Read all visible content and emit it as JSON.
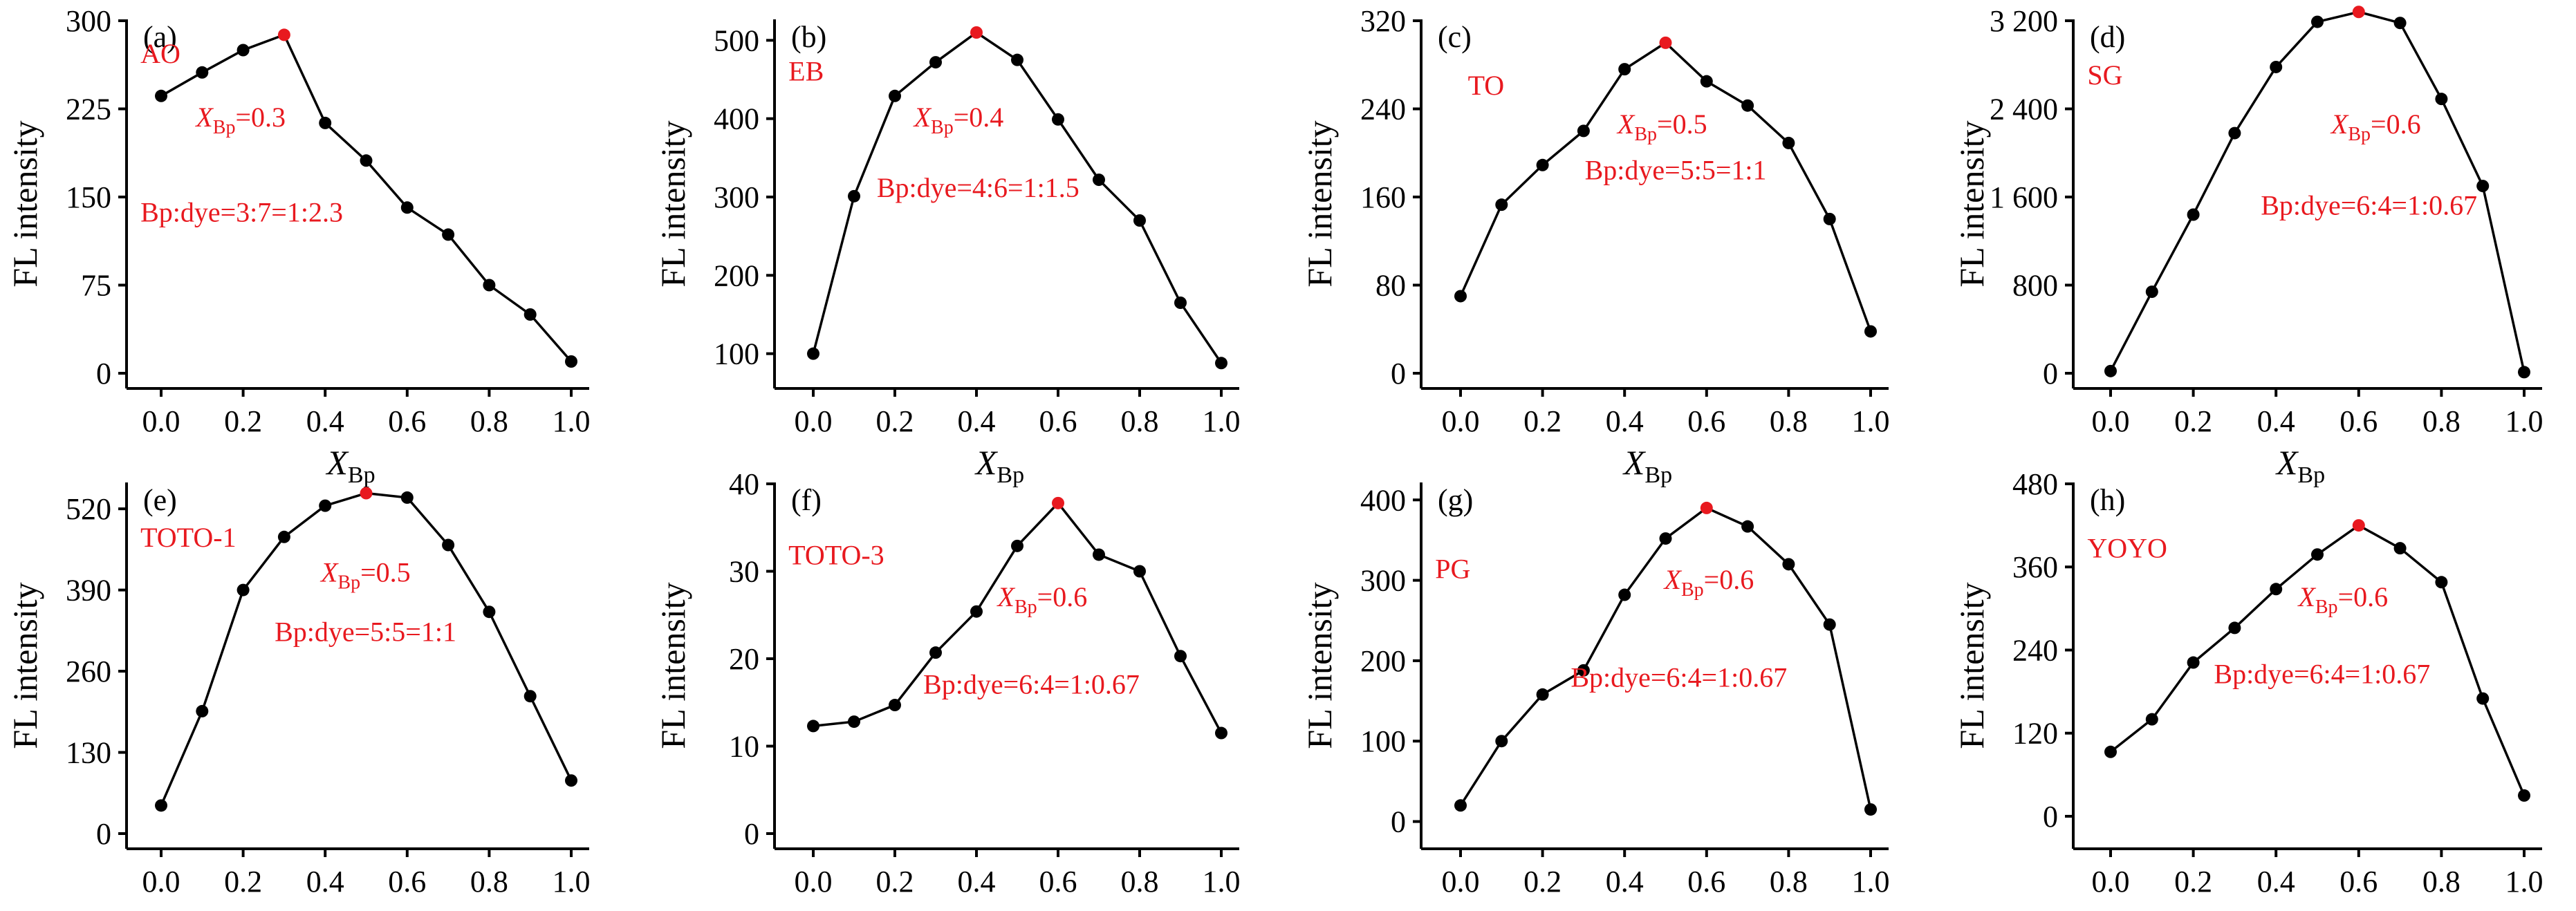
{
  "colors": {
    "axis": "#000000",
    "point": "#000000",
    "highlight": "#e8191f",
    "annotation": "#e8191f"
  },
  "chart_data": [
    {
      "type": "line",
      "panel_label": "(a)",
      "dye": "AO",
      "xlabel": "X",
      "xlabel_sub": "Bp",
      "ylabel": "FL intensity",
      "xlim": [
        0,
        1
      ],
      "ylim": [
        0,
        300
      ],
      "x": [
        0.0,
        0.1,
        0.2,
        0.3,
        0.4,
        0.5,
        0.6,
        0.7,
        0.8,
        0.9,
        1.0
      ],
      "values": [
        236,
        256,
        275,
        288,
        213,
        181,
        141,
        118,
        75,
        50,
        10
      ],
      "highlight_index": 3,
      "x_ticks": [
        "0.0",
        "0.2",
        "0.4",
        "0.6",
        "0.8",
        "1.0"
      ],
      "y_ticks": [
        0,
        75,
        150,
        225,
        300
      ],
      "y_tick_labels": [
        "0",
        "75",
        "150",
        "225",
        "300"
      ],
      "annotation_x": {
        "prefix": "X",
        "sub": "Bp",
        "suffix": "=0.3"
      },
      "annotation_ratio": "Bp:dye=3:7=1:2.3"
    },
    {
      "type": "line",
      "panel_label": "(b)",
      "dye": "EB",
      "xlabel": "X",
      "xlabel_sub": "Bp",
      "ylabel": "FL intensity",
      "xlim": [
        0,
        1
      ],
      "ylim": [
        75,
        525
      ],
      "x": [
        0.0,
        0.1,
        0.2,
        0.3,
        0.4,
        0.5,
        0.6,
        0.7,
        0.8,
        0.9,
        1.0
      ],
      "values": [
        100,
        301,
        429,
        472,
        510,
        475,
        399,
        322,
        270,
        165,
        88
      ],
      "highlight_index": 4,
      "x_ticks": [
        "0.0",
        "0.2",
        "0.4",
        "0.6",
        "0.8",
        "1.0"
      ],
      "y_ticks": [
        100,
        200,
        300,
        400,
        500
      ],
      "y_tick_labels": [
        "100",
        "200",
        "300",
        "400",
        "500"
      ],
      "annotation_x": {
        "prefix": "X",
        "sub": "Bp",
        "suffix": "=0.4"
      },
      "annotation_ratio": "Bp:dye=4:6=1:1.5"
    },
    {
      "type": "line",
      "panel_label": "(c)",
      "dye": "TO",
      "xlabel": "X",
      "xlabel_sub": "Bp",
      "ylabel": "FL intensity",
      "xlim": [
        0,
        1
      ],
      "ylim": [
        0,
        320
      ],
      "x": [
        0.0,
        0.1,
        0.2,
        0.3,
        0.4,
        0.5,
        0.6,
        0.7,
        0.8,
        0.9,
        1.0
      ],
      "values": [
        70,
        153,
        189,
        220,
        276,
        300,
        265,
        243,
        209,
        140,
        38
      ],
      "highlight_index": 5,
      "x_ticks": [
        "0.0",
        "0.2",
        "0.4",
        "0.6",
        "0.8",
        "1.0"
      ],
      "y_ticks": [
        0,
        80,
        160,
        240,
        320
      ],
      "y_tick_labels": [
        "0",
        "80",
        "160",
        "240",
        "320"
      ],
      "annotation_x": {
        "prefix": "X",
        "sub": "Bp",
        "suffix": "=0.5"
      },
      "annotation_ratio": "Bp:dye=5:5=1:1"
    },
    {
      "type": "line",
      "panel_label": "(d)",
      "dye": "SG",
      "xlabel": "X",
      "xlabel_sub": "Bp",
      "ylabel": "FL intensity",
      "xlim": [
        0,
        1
      ],
      "ylim": [
        0,
        3200
      ],
      "x": [
        0.0,
        0.1,
        0.2,
        0.3,
        0.4,
        0.5,
        0.6,
        0.7,
        0.8,
        0.9,
        1.0
      ],
      "values": [
        20,
        740,
        1440,
        2180,
        2780,
        3190,
        3280,
        3180,
        2490,
        1700,
        10
      ],
      "highlight_index": 6,
      "x_ticks": [
        "0.0",
        "0.2",
        "0.4",
        "0.6",
        "0.8",
        "1.0"
      ],
      "y_ticks": [
        0,
        800,
        1600,
        2400,
        3200
      ],
      "y_tick_labels": [
        "0",
        "800",
        "1 600",
        "2 400",
        "3 200"
      ],
      "annotation_x": {
        "prefix": "X",
        "sub": "Bp",
        "suffix": "=0.6"
      },
      "annotation_ratio": "Bp:dye=6:4=1:0.67"
    },
    {
      "type": "line",
      "panel_label": "(e)",
      "dye": "TOTO-1",
      "xlabel": "X",
      "xlabel_sub": "Bp",
      "ylabel": "FL intensity",
      "xlim": [
        0,
        1
      ],
      "ylim": [
        0,
        560
      ],
      "x": [
        0.0,
        0.1,
        0.2,
        0.3,
        0.4,
        0.5,
        0.6,
        0.7,
        0.8,
        0.9,
        1.0
      ],
      "values": [
        45,
        196,
        390,
        475,
        525,
        545,
        538,
        462,
        355,
        220,
        85
      ],
      "highlight_index": 5,
      "x_ticks": [
        "0.0",
        "0.2",
        "0.4",
        "0.6",
        "0.8",
        "1.0"
      ],
      "y_ticks": [
        0,
        130,
        260,
        390,
        520
      ],
      "y_tick_labels": [
        "0",
        "130",
        "260",
        "390",
        "520"
      ],
      "annotation_x": {
        "prefix": "X",
        "sub": "Bp",
        "suffix": "=0.5"
      },
      "annotation_ratio": "Bp:dye=5:5=1:1"
    },
    {
      "type": "line",
      "panel_label": "(f)",
      "dye": "TOTO-3",
      "xlabel": "X",
      "xlabel_sub": "Bp",
      "ylabel": "FL intensity",
      "xlim": [
        0,
        1
      ],
      "ylim": [
        0,
        40
      ],
      "x": [
        0.0,
        0.1,
        0.2,
        0.3,
        0.4,
        0.5,
        0.6,
        0.7,
        0.8,
        0.9,
        1.0
      ],
      "values": [
        12.3,
        12.8,
        14.7,
        20.7,
        25.4,
        32.9,
        37.8,
        31.9,
        30.0,
        20.3,
        11.5
      ],
      "highlight_index": 6,
      "x_ticks": [
        "0.0",
        "0.2",
        "0.4",
        "0.6",
        "0.8",
        "1.0"
      ],
      "y_ticks": [
        0,
        10,
        20,
        30,
        40
      ],
      "y_tick_labels": [
        "0",
        "10",
        "20",
        "30",
        "40"
      ],
      "annotation_x": {
        "prefix": "X",
        "sub": "Bp",
        "suffix": "=0.6"
      },
      "annotation_ratio": "Bp:dye=6:4=1:0.67"
    },
    {
      "type": "line",
      "panel_label": "(g)",
      "dye": "PG",
      "xlabel": "X",
      "xlabel_sub": "Bp",
      "ylabel": "FL intensity",
      "xlim": [
        0,
        1
      ],
      "ylim": [
        -15,
        420
      ],
      "x": [
        0.0,
        0.1,
        0.2,
        0.3,
        0.4,
        0.5,
        0.6,
        0.7,
        0.8,
        0.9,
        1.0
      ],
      "values": [
        20,
        100,
        158,
        188,
        282,
        352,
        390,
        367,
        320,
        245,
        15
      ],
      "highlight_index": 6,
      "x_ticks": [
        "0.0",
        "0.2",
        "0.4",
        "0.6",
        "0.8",
        "1.0"
      ],
      "y_ticks": [
        0,
        100,
        200,
        300,
        400
      ],
      "y_tick_labels": [
        "0",
        "100",
        "200",
        "300",
        "400"
      ],
      "annotation_x": {
        "prefix": "X",
        "sub": "Bp",
        "suffix": "=0.6"
      },
      "annotation_ratio": "Bp:dye=6:4=1:0.67"
    },
    {
      "type": "line",
      "panel_label": "(h)",
      "dye": "YOYO",
      "xlabel": "X",
      "xlabel_sub": "Bp",
      "ylabel": "FL intensity",
      "xlim": [
        0,
        1
      ],
      "ylim": [
        -25,
        480
      ],
      "x": [
        0.0,
        0.1,
        0.2,
        0.3,
        0.4,
        0.5,
        0.6,
        0.7,
        0.8,
        0.9,
        1.0
      ],
      "values": [
        93,
        140,
        222,
        272,
        328,
        378,
        420,
        387,
        338,
        170,
        30
      ],
      "highlight_index": 6,
      "x_ticks": [
        "0.0",
        "0.2",
        "0.4",
        "0.6",
        "0.8",
        "1.0"
      ],
      "y_ticks": [
        0,
        120,
        240,
        360,
        480
      ],
      "y_tick_labels": [
        "0",
        "120",
        "240",
        "360",
        "480"
      ],
      "annotation_x": {
        "prefix": "X",
        "sub": "Bp",
        "suffix": "=0.6"
      },
      "annotation_ratio": "Bp:dye=6:4=1:0.67"
    }
  ]
}
